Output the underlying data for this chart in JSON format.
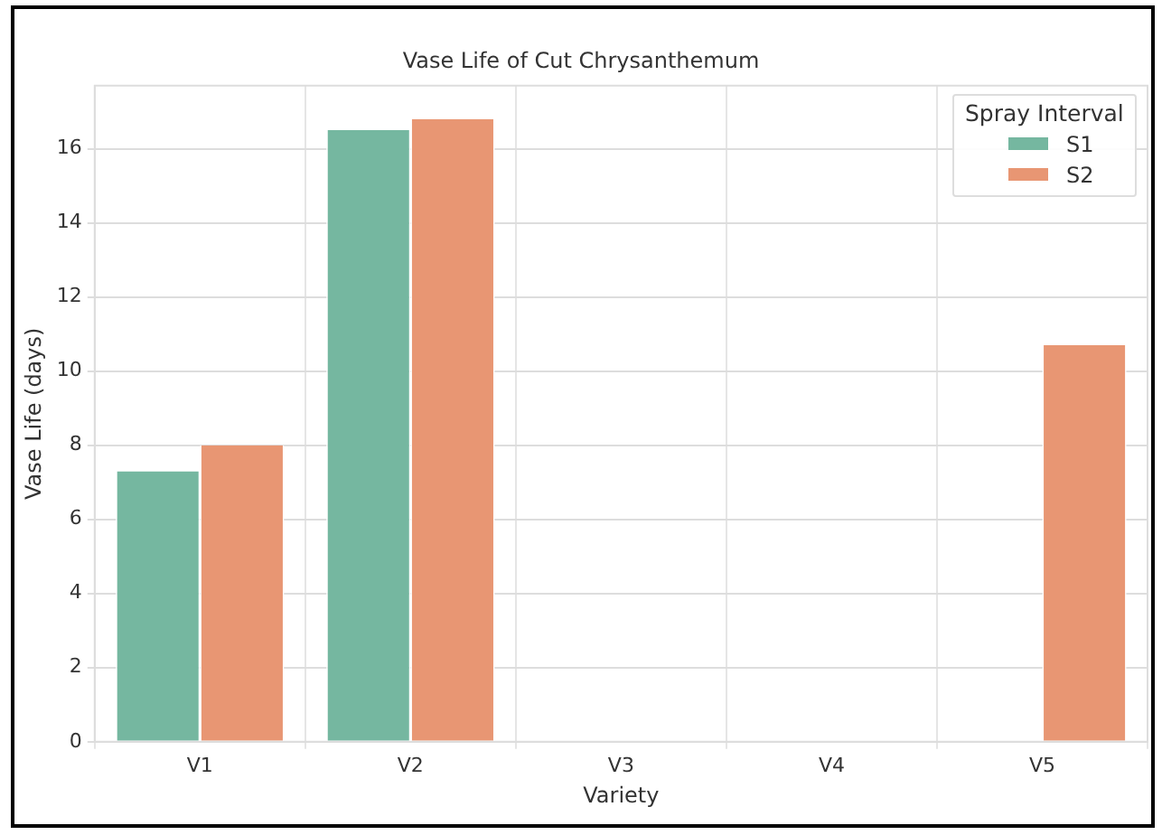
{
  "chart_data": {
    "type": "bar",
    "title": "Vase Life of Cut Chrysanthemum",
    "xlabel": "Variety",
    "ylabel": "Vase Life (days)",
    "legend_title": "Spray Interval",
    "categories": [
      "V1",
      "V2",
      "V3",
      "V4",
      "V5"
    ],
    "series": [
      {
        "name": "S1",
        "color": "#75b7a0",
        "values": [
          7.3,
          16.5,
          null,
          null,
          null
        ]
      },
      {
        "name": "S2",
        "color": "#e89673",
        "values": [
          8.0,
          16.8,
          null,
          null,
          10.7
        ]
      }
    ],
    "ylim": [
      0,
      17.7
    ],
    "yticks": [
      0,
      2,
      4,
      6,
      8,
      10,
      12,
      14,
      16
    ],
    "grid": true,
    "legend": "top right"
  }
}
